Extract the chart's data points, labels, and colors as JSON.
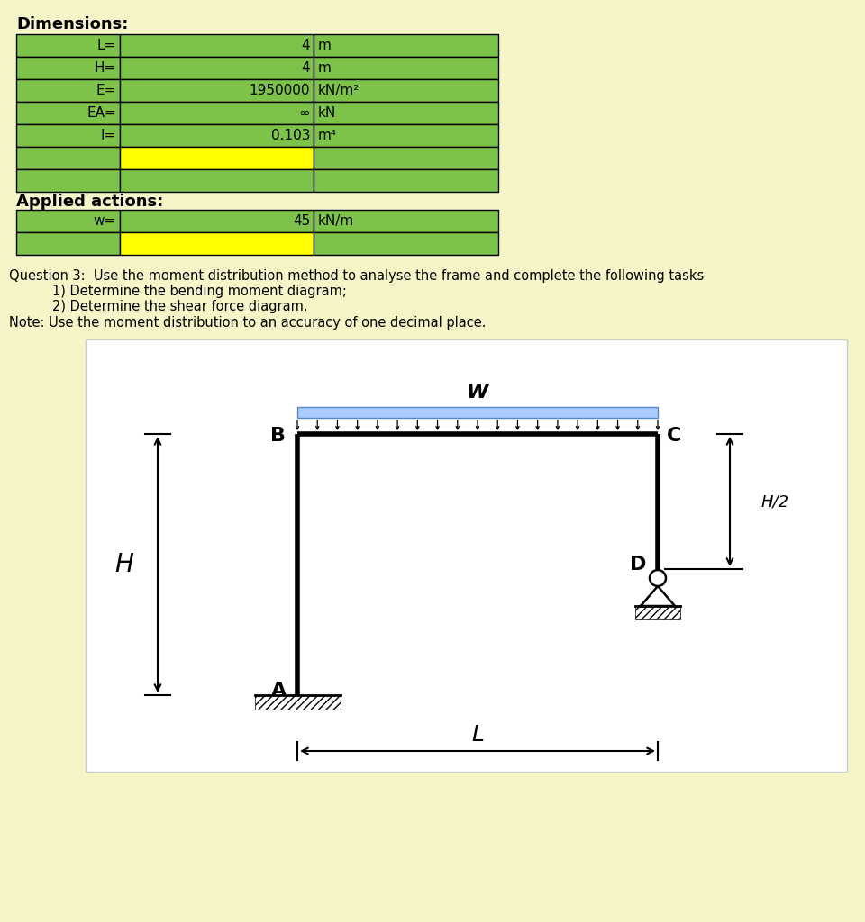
{
  "bg_color": "#f5f5c8",
  "table_bg_green": "#7dc34a",
  "table_bg_yellow": "#ffff00",
  "table_border": "#000000",
  "dim_title": "Dimensions:",
  "dim_rows": [
    {
      "label": "L=",
      "value": "4",
      "unit": "m"
    },
    {
      "label": "H=",
      "value": "4",
      "unit": "m"
    },
    {
      "label": "E=",
      "value": "1950000",
      "unit": "kN/m²"
    },
    {
      "label": "EA=",
      "value": "∞",
      "unit": "kN"
    },
    {
      "label": "I=",
      "value": "0.103",
      "unit": "m⁴"
    },
    {
      "label": "",
      "value": "",
      "unit": ""
    },
    {
      "label": "",
      "value": "",
      "unit": ""
    }
  ],
  "applied_title": "Applied actions:",
  "applied_rows": [
    {
      "label": "w=",
      "value": "45",
      "unit": "kN/m"
    },
    {
      "label": "",
      "value": "",
      "unit": ""
    }
  ],
  "question_text": "Question 3:  Use the moment distribution method to analyse the frame and complete the following tasks",
  "sub1": "1) Determine the bending moment diagram;",
  "sub2": "2) Determine the shear force diagram.",
  "note": "Note: Use the moment distribution to an accuracy of one decimal place."
}
